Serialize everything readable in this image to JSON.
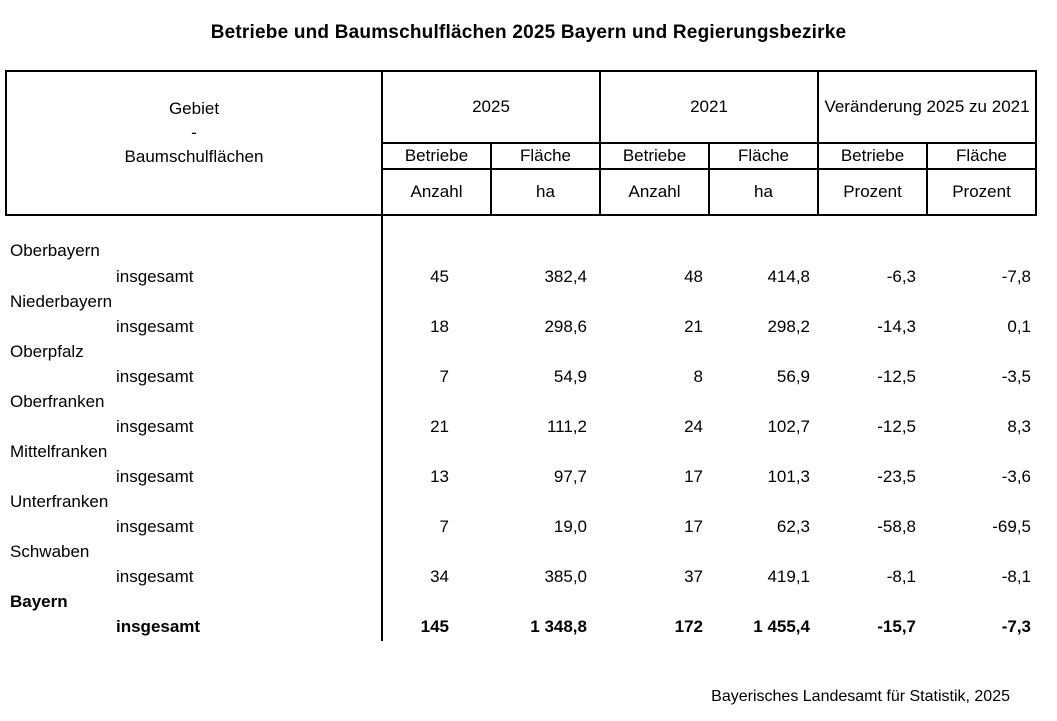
{
  "title": "Betriebe und Baumschulflächen 2025 Bayern und Regierungsbezirke",
  "table": {
    "header": {
      "gebiet": {
        "line1": "Gebiet",
        "line2": "-",
        "line3": "Baumschulflächen"
      },
      "groups": [
        {
          "label": "2025",
          "sub": [
            "Betriebe",
            "Fläche"
          ],
          "units": [
            "Anzahl",
            "ha"
          ]
        },
        {
          "label": "2021",
          "sub": [
            "Betriebe",
            "Fläche"
          ],
          "units": [
            "Anzahl",
            "ha"
          ]
        },
        {
          "label": "Veränderung 2025 zu 2021",
          "sub": [
            "Betriebe",
            "Fläche"
          ],
          "units": [
            "Prozent",
            "Prozent"
          ]
        }
      ]
    },
    "rows": [
      {
        "region": "Oberbayern",
        "label": "insgesamt",
        "values": [
          "45",
          "382,4",
          "48",
          "414,8",
          "-6,3",
          "-7,8"
        ]
      },
      {
        "region": "Niederbayern",
        "label": "insgesamt",
        "values": [
          "18",
          "298,6",
          "21",
          "298,2",
          "-14,3",
          "0,1"
        ]
      },
      {
        "region": "Oberpfalz",
        "label": "insgesamt",
        "values": [
          "7",
          "54,9",
          "8",
          "56,9",
          "-12,5",
          "-3,5"
        ]
      },
      {
        "region": "Oberfranken",
        "label": "insgesamt",
        "values": [
          "21",
          "111,2",
          "24",
          "102,7",
          "-12,5",
          "8,3"
        ]
      },
      {
        "region": "Mittelfranken",
        "label": "insgesamt",
        "values": [
          "13",
          "97,7",
          "17",
          "101,3",
          "-23,5",
          "-3,6"
        ]
      },
      {
        "region": "Unterfranken",
        "label": "insgesamt",
        "values": [
          "7",
          "19,0",
          "17",
          "62,3",
          "-58,8",
          "-69,5"
        ]
      },
      {
        "region": "Schwaben",
        "label": "insgesamt",
        "values": [
          "34",
          "385,0",
          "37",
          "419,1",
          "-8,1",
          "-8,1"
        ]
      },
      {
        "region": "Bayern",
        "label": "insgesamt",
        "values": [
          "145",
          "1 348,8",
          "172",
          "1 455,4",
          "-15,7",
          "-7,3"
        ]
      }
    ]
  },
  "footer": "Bayerisches Landesamt für Statistik, 2025"
}
